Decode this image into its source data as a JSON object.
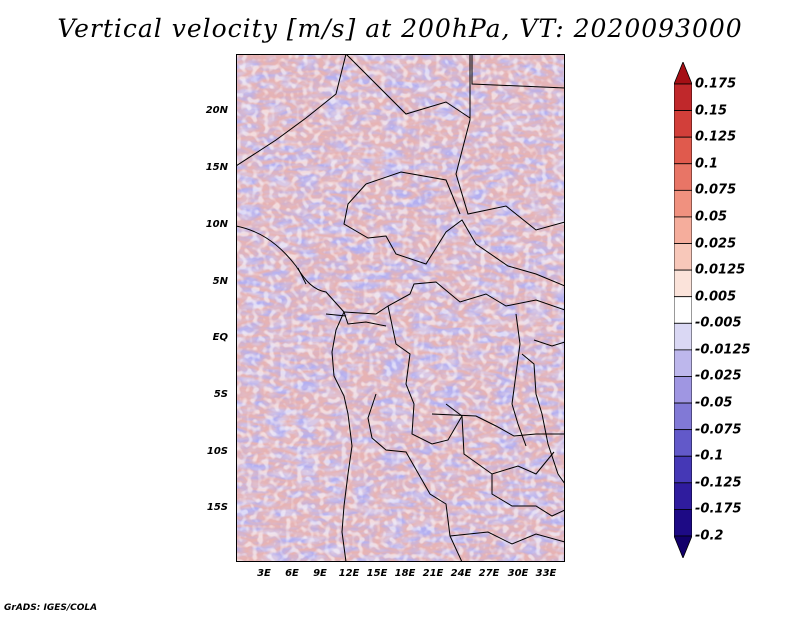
{
  "title": "Vertical velocity [m/s] at 200hPa, VT: 2020093000",
  "footer": "GrADS: IGES/COLA",
  "map": {
    "lat_labels": [
      "20N",
      "15N",
      "10N",
      "5N",
      "EQ",
      "5S",
      "10S",
      "15S"
    ],
    "lon_labels": [
      "3E",
      "6E",
      "9E",
      "12E",
      "15E",
      "18E",
      "21E",
      "24E",
      "27E",
      "30E",
      "33E"
    ]
  },
  "colorbar": {
    "levels": [
      "0.175",
      "0.15",
      "0.125",
      "0.1",
      "0.075",
      "0.05",
      "0.025",
      "0.0125",
      "0.005",
      "-0.005",
      "-0.0125",
      "-0.025",
      "-0.05",
      "-0.075",
      "-0.1",
      "-0.125",
      "-0.175",
      "-0.2"
    ],
    "colors": [
      "#a50f15",
      "#c0282b",
      "#d23f3a",
      "#e05a4d",
      "#e87566",
      "#f0917f",
      "#f5ad9c",
      "#f8c8ba",
      "#fbe3da",
      "#ffffff",
      "#dad8f4",
      "#bdb7ec",
      "#9f96e2",
      "#8179d6",
      "#6259c9",
      "#4538b6",
      "#2f1c9e",
      "#1d0a85",
      "#12006a"
    ],
    "top_color": "#a50f15",
    "bottom_color": "#12006a"
  }
}
